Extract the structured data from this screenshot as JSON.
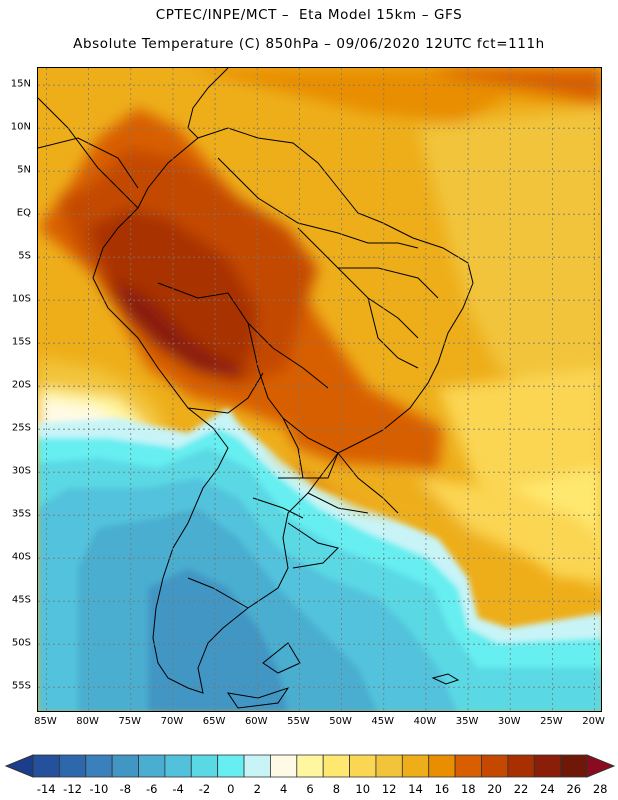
{
  "title": {
    "line1": "CPTEC/INPE/MCT –  Eta Model 15km – GFS",
    "line2": "Absolute Temperature (C) 850hPa – 09/06/2020 12UTC fct=111h"
  },
  "map": {
    "lon_range": [
      -86,
      -19
    ],
    "lat_range": [
      17,
      -58
    ],
    "lat_labels": [
      {
        "lat": 15,
        "text": "15N"
      },
      {
        "lat": 10,
        "text": "10N"
      },
      {
        "lat": 5,
        "text": "5N"
      },
      {
        "lat": 0,
        "text": "EQ"
      },
      {
        "lat": -5,
        "text": "5S"
      },
      {
        "lat": -10,
        "text": "10S"
      },
      {
        "lat": -15,
        "text": "15S"
      },
      {
        "lat": -20,
        "text": "20S"
      },
      {
        "lat": -25,
        "text": "25S"
      },
      {
        "lat": -30,
        "text": "30S"
      },
      {
        "lat": -35,
        "text": "35S"
      },
      {
        "lat": -40,
        "text": "40S"
      },
      {
        "lat": -45,
        "text": "45S"
      },
      {
        "lat": -50,
        "text": "50S"
      },
      {
        "lat": -55,
        "text": "55S"
      }
    ],
    "lon_labels": [
      {
        "lon": -85,
        "text": "85W"
      },
      {
        "lon": -80,
        "text": "80W"
      },
      {
        "lon": -75,
        "text": "75W"
      },
      {
        "lon": -70,
        "text": "70W"
      },
      {
        "lon": -65,
        "text": "65W"
      },
      {
        "lon": -60,
        "text": "60W"
      },
      {
        "lon": -55,
        "text": "55W"
      },
      {
        "lon": -50,
        "text": "50W"
      },
      {
        "lon": -45,
        "text": "45W"
      },
      {
        "lon": -40,
        "text": "40W"
      },
      {
        "lon": -35,
        "text": "35W"
      },
      {
        "lon": -30,
        "text": "30W"
      },
      {
        "lon": -25,
        "text": "25W"
      },
      {
        "lon": -20,
        "text": "20W"
      }
    ]
  },
  "colorbar": {
    "levels": [
      "-14",
      "-12",
      "-10",
      "-8",
      "-6",
      "-4",
      "-2",
      "0",
      "2",
      "4",
      "6",
      "8",
      "10",
      "12",
      "14",
      "16",
      "18",
      "20",
      "22",
      "24",
      "26",
      "28"
    ],
    "colors": [
      "#1c3c8c",
      "#24509c",
      "#2e68ac",
      "#3a80bc",
      "#4296c4",
      "#4aaed0",
      "#52c2dc",
      "#5ad8e4",
      "#66eef0",
      "#c8f4f8",
      "#fffae6",
      "#fff7a0",
      "#ffe870",
      "#fbd652",
      "#f2c43a",
      "#eeae1a",
      "#e88e00",
      "#d85e00",
      "#c44800",
      "#a83000",
      "#8a1e08",
      "#701808",
      "#8c0a1e"
    ]
  }
}
